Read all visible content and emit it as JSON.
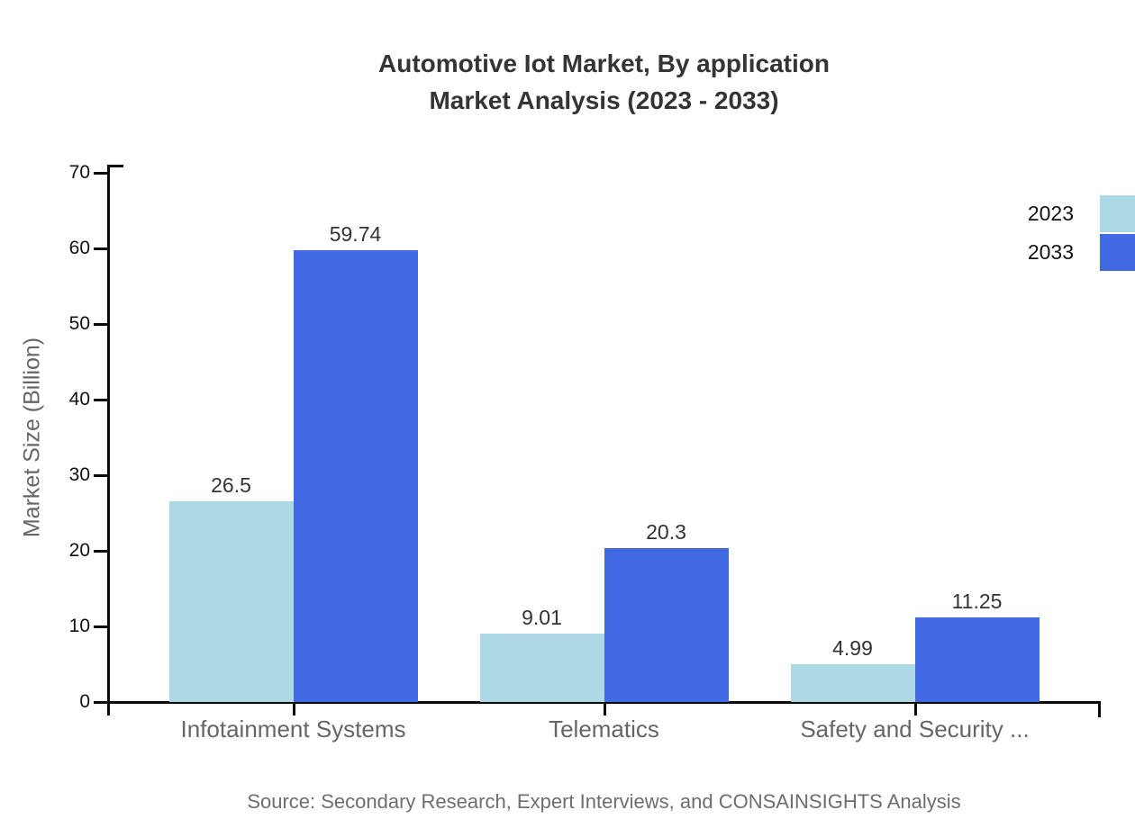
{
  "header": {
    "title_line1": "Automotive Iot Market, By application",
    "title_line2": "Market Analysis (2023 - 2033)"
  },
  "footer": {
    "source": "Source: Secondary Research, Expert Interviews, and CONSAINSIGHTS Analysis"
  },
  "chart_data": {
    "type": "bar",
    "title": "Automotive Iot Market, By application Market Analysis (2023 - 2033)",
    "ylabel": "Market Size (Billion)",
    "xlabel": "",
    "categories": [
      "Infotainment Systems",
      "Telematics",
      "Safety and Security ..."
    ],
    "series": [
      {
        "name": "2023",
        "color": "#ADD8E6",
        "values": [
          26.5,
          9.01,
          4.99
        ]
      },
      {
        "name": "2033",
        "color": "#4169E1",
        "values": [
          59.74,
          20.3,
          11.25
        ]
      }
    ],
    "ylim": [
      0,
      70
    ],
    "yticks": [
      0,
      10,
      20,
      30,
      40,
      50,
      60,
      70
    ],
    "grid": false,
    "legend_position": "top-right",
    "value_labels_shown": true,
    "axis_color": "#0a0a0a"
  }
}
